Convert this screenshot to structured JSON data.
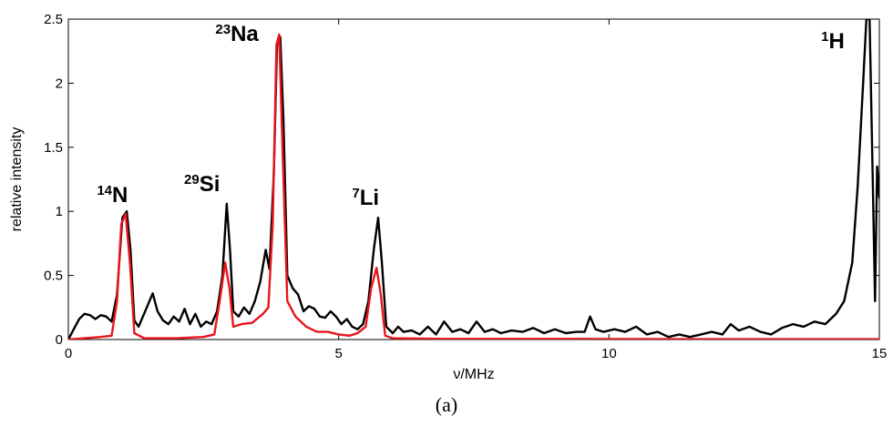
{
  "chart_data": {
    "type": "line",
    "xlabel": "ν/MHz",
    "ylabel": "relative intensity",
    "xlim": [
      0,
      15
    ],
    "ylim": [
      0,
      2.5
    ],
    "x_ticks": [
      0,
      5,
      10,
      15
    ],
    "x_tick_labels": [
      "0",
      "5",
      "10",
      "15"
    ],
    "y_ticks": [
      0,
      0.5,
      1,
      1.5,
      2,
      2.5
    ],
    "y_tick_labels": [
      "0",
      "0.5",
      "1",
      "1.5",
      "2",
      "2.5"
    ],
    "grid": false,
    "panel_label": "(a)",
    "series": [
      {
        "color": "#000000",
        "points": [
          [
            0,
            0
          ],
          [
            0.1,
            0.08
          ],
          [
            0.2,
            0.16
          ],
          [
            0.3,
            0.2
          ],
          [
            0.4,
            0.19
          ],
          [
            0.5,
            0.16
          ],
          [
            0.6,
            0.19
          ],
          [
            0.7,
            0.18
          ],
          [
            0.8,
            0.14
          ],
          [
            0.9,
            0.35
          ],
          [
            1.0,
            0.95
          ],
          [
            1.08,
            1.0
          ],
          [
            1.15,
            0.7
          ],
          [
            1.22,
            0.15
          ],
          [
            1.3,
            0.1
          ],
          [
            1.4,
            0.2
          ],
          [
            1.5,
            0.3
          ],
          [
            1.56,
            0.36
          ],
          [
            1.65,
            0.22
          ],
          [
            1.75,
            0.15
          ],
          [
            1.85,
            0.12
          ],
          [
            1.95,
            0.18
          ],
          [
            2.05,
            0.14
          ],
          [
            2.15,
            0.24
          ],
          [
            2.25,
            0.12
          ],
          [
            2.35,
            0.2
          ],
          [
            2.45,
            0.1
          ],
          [
            2.55,
            0.14
          ],
          [
            2.65,
            0.12
          ],
          [
            2.75,
            0.22
          ],
          [
            2.85,
            0.5
          ],
          [
            2.93,
            1.06
          ],
          [
            2.99,
            0.7
          ],
          [
            3.05,
            0.22
          ],
          [
            3.15,
            0.18
          ],
          [
            3.25,
            0.25
          ],
          [
            3.35,
            0.2
          ],
          [
            3.45,
            0.3
          ],
          [
            3.55,
            0.45
          ],
          [
            3.65,
            0.7
          ],
          [
            3.72,
            0.55
          ],
          [
            3.8,
            1.3
          ],
          [
            3.86,
            2.3
          ],
          [
            3.92,
            2.36
          ],
          [
            3.98,
            1.7
          ],
          [
            4.05,
            0.5
          ],
          [
            4.15,
            0.4
          ],
          [
            4.25,
            0.35
          ],
          [
            4.35,
            0.22
          ],
          [
            4.45,
            0.26
          ],
          [
            4.55,
            0.24
          ],
          [
            4.65,
            0.18
          ],
          [
            4.75,
            0.17
          ],
          [
            4.85,
            0.22
          ],
          [
            4.95,
            0.18
          ],
          [
            5.05,
            0.12
          ],
          [
            5.15,
            0.16
          ],
          [
            5.25,
            0.1
          ],
          [
            5.35,
            0.08
          ],
          [
            5.45,
            0.12
          ],
          [
            5.55,
            0.3
          ],
          [
            5.65,
            0.7
          ],
          [
            5.73,
            0.95
          ],
          [
            5.8,
            0.6
          ],
          [
            5.88,
            0.1
          ],
          [
            6.0,
            0.05
          ],
          [
            6.1,
            0.1
          ],
          [
            6.2,
            0.06
          ],
          [
            6.35,
            0.07
          ],
          [
            6.5,
            0.04
          ],
          [
            6.65,
            0.1
          ],
          [
            6.8,
            0.04
          ],
          [
            6.95,
            0.14
          ],
          [
            7.1,
            0.06
          ],
          [
            7.25,
            0.08
          ],
          [
            7.4,
            0.05
          ],
          [
            7.55,
            0.14
          ],
          [
            7.7,
            0.06
          ],
          [
            7.85,
            0.08
          ],
          [
            8.0,
            0.05
          ],
          [
            8.2,
            0.07
          ],
          [
            8.4,
            0.06
          ],
          [
            8.6,
            0.09
          ],
          [
            8.8,
            0.05
          ],
          [
            9.0,
            0.08
          ],
          [
            9.2,
            0.05
          ],
          [
            9.4,
            0.06
          ],
          [
            9.55,
            0.06
          ],
          [
            9.65,
            0.18
          ],
          [
            9.75,
            0.08
          ],
          [
            9.9,
            0.06
          ],
          [
            10.1,
            0.08
          ],
          [
            10.3,
            0.06
          ],
          [
            10.5,
            0.1
          ],
          [
            10.7,
            0.04
          ],
          [
            10.9,
            0.06
          ],
          [
            11.1,
            0.02
          ],
          [
            11.3,
            0.04
          ],
          [
            11.5,
            0.02
          ],
          [
            11.7,
            0.04
          ],
          [
            11.9,
            0.06
          ],
          [
            12.1,
            0.04
          ],
          [
            12.25,
            0.12
          ],
          [
            12.4,
            0.07
          ],
          [
            12.6,
            0.1
          ],
          [
            12.8,
            0.06
          ],
          [
            13.0,
            0.04
          ],
          [
            13.2,
            0.09
          ],
          [
            13.4,
            0.12
          ],
          [
            13.6,
            0.1
          ],
          [
            13.8,
            0.14
          ],
          [
            14.0,
            0.12
          ],
          [
            14.2,
            0.2
          ],
          [
            14.35,
            0.3
          ],
          [
            14.5,
            0.6
          ],
          [
            14.6,
            1.2
          ],
          [
            14.7,
            2.0
          ],
          [
            14.76,
            2.5
          ],
          [
            14.82,
            2.5
          ],
          [
            14.88,
            1.2
          ],
          [
            14.92,
            0.3
          ],
          [
            14.96,
            1.35
          ],
          [
            15.0,
            1.1
          ]
        ]
      },
      {
        "color": "#e8161b",
        "points": [
          [
            0,
            0
          ],
          [
            0.3,
            0.01
          ],
          [
            0.6,
            0.02
          ],
          [
            0.8,
            0.03
          ],
          [
            0.9,
            0.3
          ],
          [
            0.98,
            0.9
          ],
          [
            1.06,
            0.98
          ],
          [
            1.14,
            0.6
          ],
          [
            1.22,
            0.05
          ],
          [
            1.4,
            0.01
          ],
          [
            2.0,
            0.01
          ],
          [
            2.5,
            0.02
          ],
          [
            2.7,
            0.04
          ],
          [
            2.8,
            0.3
          ],
          [
            2.9,
            0.6
          ],
          [
            2.98,
            0.4
          ],
          [
            3.05,
            0.1
          ],
          [
            3.2,
            0.12
          ],
          [
            3.4,
            0.13
          ],
          [
            3.6,
            0.2
          ],
          [
            3.7,
            0.25
          ],
          [
            3.78,
            0.9
          ],
          [
            3.85,
            2.3
          ],
          [
            3.9,
            2.38
          ],
          [
            3.96,
            1.5
          ],
          [
            4.05,
            0.3
          ],
          [
            4.2,
            0.18
          ],
          [
            4.4,
            0.1
          ],
          [
            4.6,
            0.06
          ],
          [
            4.8,
            0.06
          ],
          [
            5.0,
            0.04
          ],
          [
            5.2,
            0.03
          ],
          [
            5.35,
            0.05
          ],
          [
            5.5,
            0.1
          ],
          [
            5.6,
            0.4
          ],
          [
            5.7,
            0.56
          ],
          [
            5.78,
            0.35
          ],
          [
            5.86,
            0.03
          ],
          [
            6.0,
            0.01
          ],
          [
            7.0,
            0.005
          ],
          [
            8.0,
            0.005
          ],
          [
            10.0,
            0.004
          ],
          [
            12.0,
            0.003
          ],
          [
            15.0,
            0.003
          ]
        ]
      }
    ],
    "annotations": [
      {
        "sup": "14",
        "text": "N",
        "x": 1.0,
        "y": 1.0
      },
      {
        "sup": "29",
        "text": "Si",
        "x": 2.95,
        "y": 1.06
      },
      {
        "sup": "23",
        "text": "Na",
        "x": 3.9,
        "y": 2.36
      },
      {
        "sup": "7",
        "text": "Li",
        "x": 5.72,
        "y": 0.95
      },
      {
        "sup": "1",
        "text": "H",
        "x": 14.85,
        "y": 2.5
      }
    ]
  }
}
